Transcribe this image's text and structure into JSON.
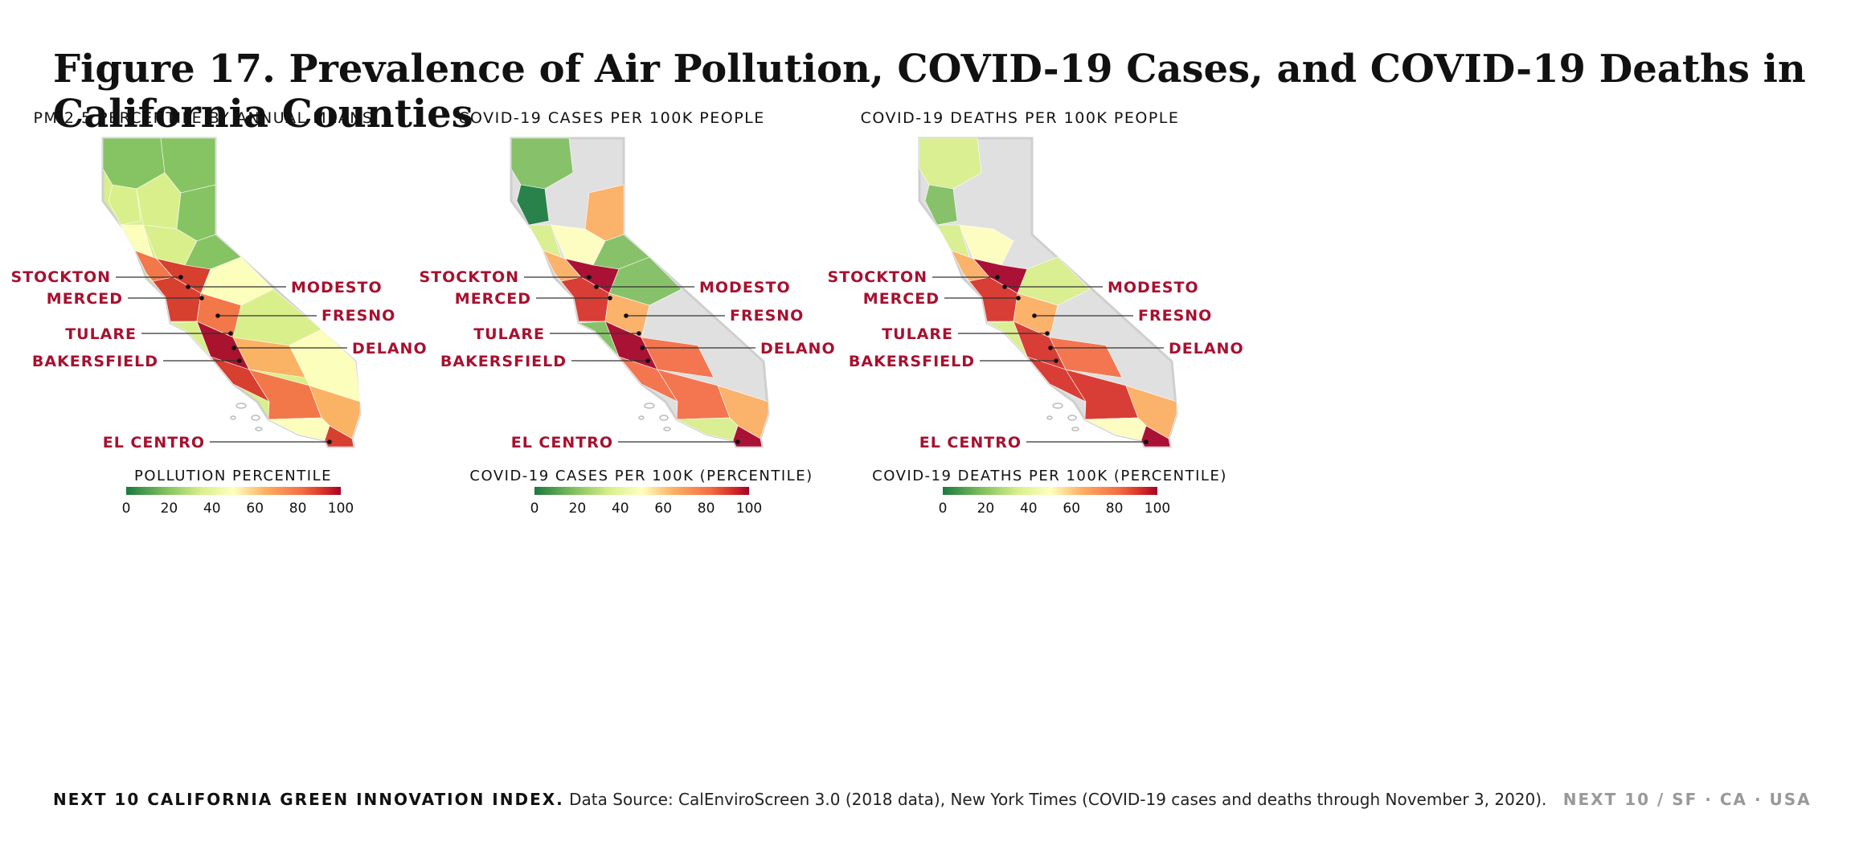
{
  "figure": {
    "title": "Figure 17. Prevalence of Air Pollution, COVID-19 Cases, and COVID-19 Deaths in California Counties"
  },
  "panels": [
    {
      "id": "pm25",
      "title": "PM 2.5 PERCENTILE BY ANNUAL MEANS",
      "legend_title": "POLLUTION PERCENTILE",
      "coverage": "full"
    },
    {
      "id": "cases",
      "title": "COVID-19 CASES PER 100K PEOPLE",
      "legend_title": "COVID-19 CASES PER 100K (PERCENTILE)",
      "coverage": "partial"
    },
    {
      "id": "deaths",
      "title": "COVID-19 DEATHS PER 100K PEOPLE",
      "legend_title": "COVID-19 DEATHS PER 100K (PERCENTILE)",
      "coverage": "partial"
    }
  ],
  "city_labels": [
    "STOCKTON",
    "MODESTO",
    "MERCED",
    "FRESNO",
    "TULARE",
    "DELANO",
    "BAKERSFIELD",
    "EL CENTRO"
  ],
  "legend_ticks": [
    "0",
    "20",
    "40",
    "60",
    "80",
    "100"
  ],
  "colors": {
    "scale": [
      "#1a7a3e",
      "#7fbf5f",
      "#d9ef8b",
      "#ffffbf",
      "#fdae61",
      "#f46d43",
      "#d73027",
      "#a50026"
    ],
    "no_data": "#e0e0e0",
    "label_red": "#a8102f",
    "map_outline": "#cfcfcf"
  },
  "footer": {
    "index_label": "NEXT 10 CALIFORNIA GREEN INNOVATION INDEX.",
    "source": "Data Source: CalEnviroScreen 3.0 (2018 data), New York Times (COVID-19 cases and deaths through November 3, 2020).",
    "brand": "NEXT 10  /  SF · CA · USA"
  }
}
